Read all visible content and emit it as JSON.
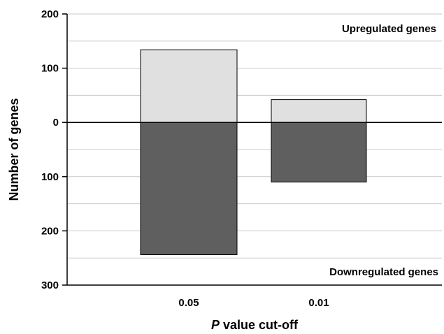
{
  "chart_data": {
    "type": "bar",
    "categories": [
      "0.05",
      "0.01"
    ],
    "series": [
      {
        "name": "Upregulated genes",
        "values": [
          134,
          42
        ],
        "color": "#e0e0e0"
      },
      {
        "name": "Downregulated genes",
        "values": [
          -244,
          -110
        ],
        "color": "#5f5f5f"
      }
    ],
    "ylim": [
      -300,
      200
    ],
    "yticks": [
      {
        "value": 200,
        "label": "200"
      },
      {
        "value": 100,
        "label": "100"
      },
      {
        "value": 0,
        "label": "0"
      },
      {
        "value": -100,
        "label": "100"
      },
      {
        "value": -200,
        "label": "200"
      },
      {
        "value": -300,
        "label": "300"
      }
    ],
    "grid": true,
    "gridlines": [
      200,
      150,
      100,
      50,
      -50,
      -100,
      -150,
      -200,
      -250
    ],
    "ylabel": "Number of genes",
    "xlabel": {
      "italic": "P",
      "rest": " value cut-off"
    },
    "annotations": {
      "up": "Upregulated genes",
      "down": "Downregulated genes"
    }
  }
}
